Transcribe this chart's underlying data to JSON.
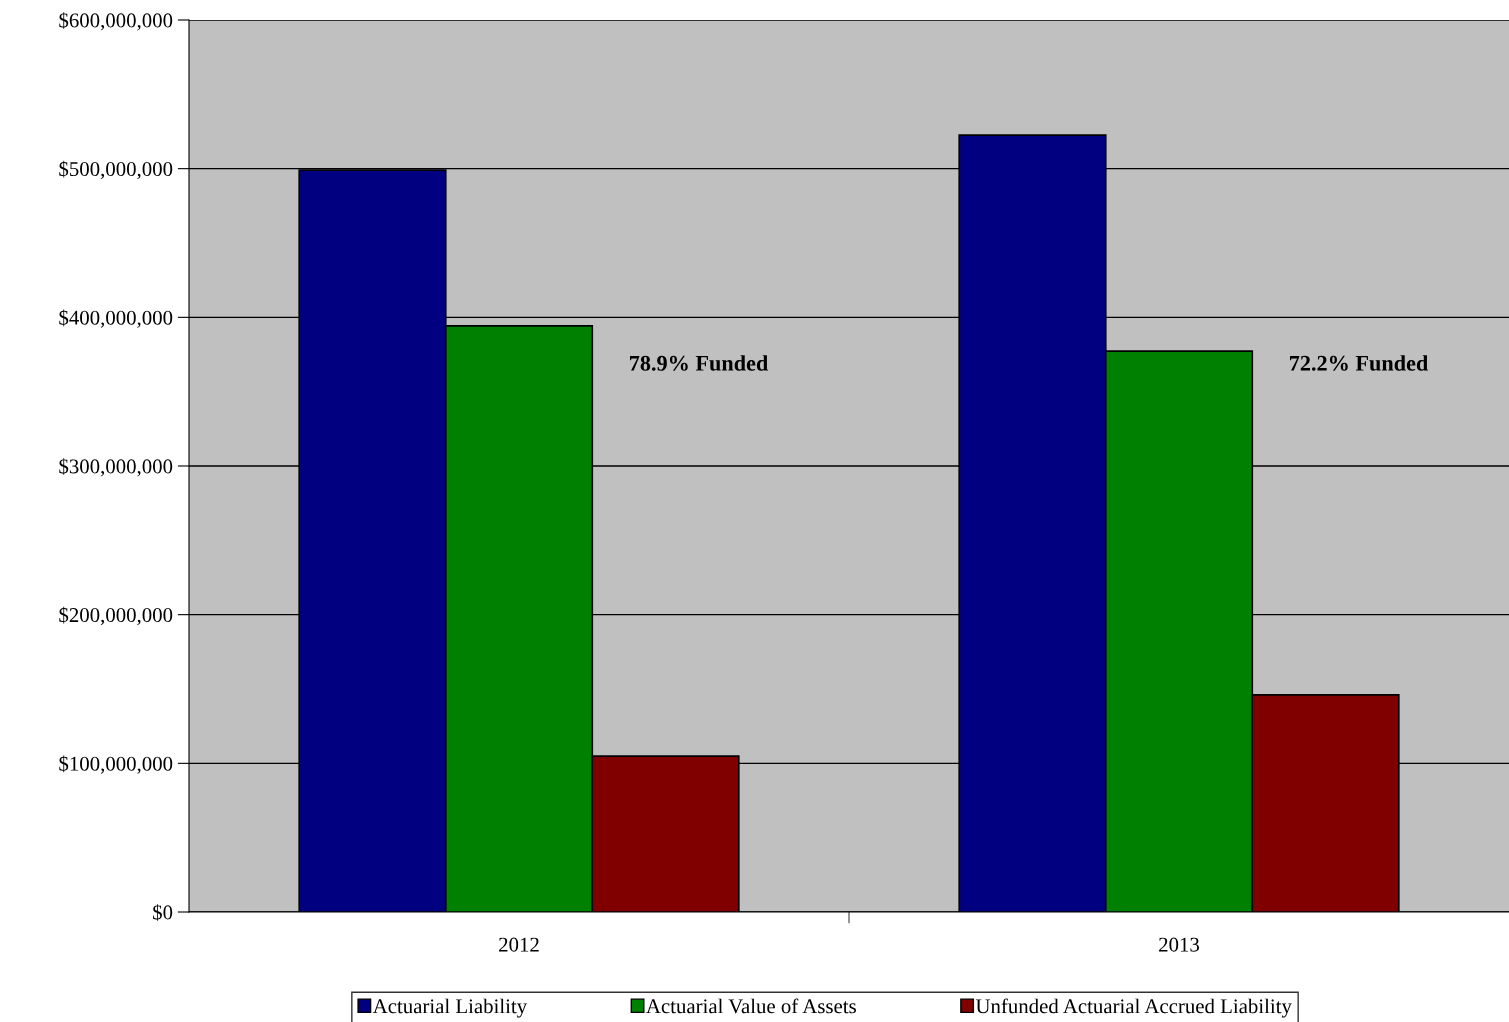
{
  "chart_data": {
    "type": "bar",
    "categories": [
      "2012",
      "2013"
    ],
    "series": [
      {
        "name": "Actuarial Liability",
        "color": "#000080",
        "values": [
          499000000,
          522600000
        ]
      },
      {
        "name": "Actuarial Value of Assets",
        "color": "#008000",
        "values": [
          394200000,
          377300000
        ]
      },
      {
        "name": "Unfunded Actuarial Accrued Liability",
        "color": "#800000",
        "values": [
          104900000,
          146000000
        ]
      }
    ],
    "ylim": [
      0,
      600000000
    ],
    "yticks": [
      {
        "value": 0,
        "label": "$0"
      },
      {
        "value": 100000000,
        "label": "$100,000,000"
      },
      {
        "value": 200000000,
        "label": "$200,000,000"
      },
      {
        "value": 300000000,
        "label": "$300,000,000"
      },
      {
        "value": 400000000,
        "label": "$400,000,000"
      },
      {
        "value": 500000000,
        "label": "$500,000,000"
      },
      {
        "value": 600000000,
        "label": "$600,000,000"
      }
    ],
    "annotations": [
      "78.9% Funded",
      "72.2% Funded"
    ],
    "grid": "y",
    "legend": "bottom"
  }
}
